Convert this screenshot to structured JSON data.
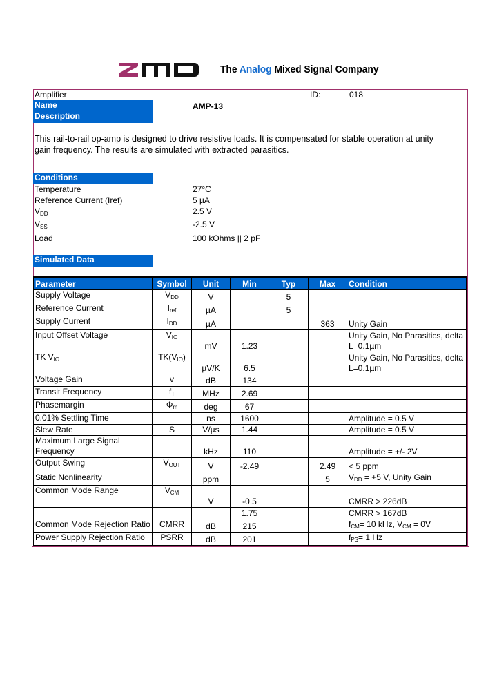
{
  "header": {
    "logo_text": "ZMD",
    "tagline_pre": "The ",
    "tagline_accent": "Analog",
    "tagline_post": " Mixed Signal Company",
    "brand_color": "#a0306a",
    "accent_color": "#0066cc"
  },
  "info": {
    "category": "Amplifier",
    "id_label": "ID:",
    "id_value": "018",
    "name_label": "Name",
    "name_value": "AMP-13",
    "description_label": "Description",
    "description": "This rail-to-rail op-amp is designed to drive resistive loads. It is compensated for stable operation at unity gain frequency. The results are simulated with extracted parasitics."
  },
  "conditions": {
    "title": "Conditions",
    "items": [
      {
        "label": "Temperature",
        "sub": "",
        "value": "27°C"
      },
      {
        "label": "Reference Current (Iref)",
        "sub": "",
        "value": "5 µA"
      },
      {
        "label": "V",
        "sub": "DD",
        "value": "2.5 V"
      },
      {
        "label": "V",
        "sub": "SS",
        "value": "-2.5 V"
      },
      {
        "label": "Load",
        "sub": "",
        "value": "100 kOhms || 2 pF"
      }
    ]
  },
  "simulated_title": "Simulated Data",
  "table": {
    "headers": [
      "Parameter",
      "Symbol",
      "Unit",
      "Min",
      "Typ",
      "Max",
      "Condition"
    ],
    "rows": [
      {
        "param": "Supply Voltage",
        "sym": [
          "V",
          "DD"
        ],
        "unit": "V",
        "min": "",
        "typ": "5",
        "max": "",
        "cond": [
          [
            "",
            ""
          ]
        ]
      },
      {
        "param": "Reference Current",
        "sym": [
          "I",
          "ref"
        ],
        "unit": "µA",
        "min": "",
        "typ": "5",
        "max": "",
        "cond": [
          [
            "",
            ""
          ]
        ]
      },
      {
        "param": "Supply Current",
        "sym": [
          "I",
          "DD"
        ],
        "unit": "µA",
        "min": "",
        "typ": "",
        "max": "363",
        "cond": [
          [
            "Unity Gain",
            ""
          ]
        ]
      },
      {
        "param": "Input Offset Voltage",
        "sym": [
          "V",
          "IO"
        ],
        "unit": "mV",
        "min": "1.23",
        "typ": "",
        "max": "",
        "cond": [
          [
            "Unity Gain, No Parasitics, delta L=0.1µm",
            ""
          ]
        ],
        "tall": true
      },
      {
        "param": "TK V|IO",
        "sym": [
          "TK(V",
          "IO",
          ")"
        ],
        "unit": "µV/K",
        "min": "6.5",
        "typ": "",
        "max": "",
        "cond": [
          [
            "Unity Gain, No Parasitics, delta L=0.1µm",
            ""
          ]
        ],
        "tall": true
      },
      {
        "param": "Voltage Gain",
        "sym": [
          "v",
          ""
        ],
        "unit": "dB",
        "min": "134",
        "typ": "",
        "max": "",
        "cond": [
          [
            "",
            ""
          ]
        ]
      },
      {
        "param": "Transit Frequency",
        "sym": [
          "f",
          "T"
        ],
        "unit": "MHz",
        "min": "2.69",
        "typ": "",
        "max": "",
        "cond": [
          [
            "",
            ""
          ]
        ]
      },
      {
        "param": "Phasemargin",
        "sym": [
          "Φ",
          "m"
        ],
        "unit": "deg",
        "min": "67",
        "typ": "",
        "max": "",
        "cond": [
          [
            "",
            ""
          ]
        ]
      },
      {
        "param": "0.01% Settling Time",
        "sym": [
          "",
          ""
        ],
        "unit": "ns",
        "min": "1600",
        "typ": "",
        "max": "",
        "cond": [
          [
            "Amplitude = 0.5 V",
            ""
          ]
        ]
      },
      {
        "param": "Slew Rate",
        "sym": [
          "S",
          ""
        ],
        "unit": "V/µs",
        "min": "1.44",
        "typ": "",
        "max": "",
        "cond": [
          [
            "Amplitude = 0.5 V",
            ""
          ]
        ]
      },
      {
        "param": "Maximum Large Signal Frequency",
        "sym": [
          "",
          ""
        ],
        "unit": "kHz",
        "min": "110",
        "typ": "",
        "max": "",
        "cond": [
          [
            "Amplitude = +/- 2V",
            ""
          ]
        ]
      },
      {
        "param": "Output Swing",
        "sym": [
          "V",
          "OUT"
        ],
        "unit": "V",
        "min": "-2.49",
        "typ": "",
        "max": "2.49",
        "cond": [
          [
            "< 5 ppm",
            ""
          ]
        ]
      },
      {
        "param": "Static Nonlinearity",
        "sym": [
          "",
          ""
        ],
        "unit": "ppm",
        "min": "",
        "typ": "",
        "max": "5",
        "cond": [
          [
            "V",
            "DD"
          ],
          [
            " = +5 V, Unity Gain",
            ""
          ]
        ]
      },
      {
        "param": "Common Mode Range",
        "sym": [
          "V",
          "CM"
        ],
        "unit": "V",
        "min": "-0.5",
        "typ": "",
        "max": "",
        "cond": [
          [
            "CMRR > 226dB",
            ""
          ]
        ],
        "tall": true
      },
      {
        "param": "",
        "sym": [
          "",
          ""
        ],
        "unit": "",
        "min": "1.75",
        "typ": "",
        "max": "",
        "cond": [
          [
            "CMRR > 167dB",
            ""
          ]
        ]
      },
      {
        "param": "Common Mode Rejection Ratio",
        "sym": [
          "CMRR",
          ""
        ],
        "unit": "dB",
        "min": "215",
        "typ": "",
        "max": "",
        "cond": [
          [
            "f",
            "CM"
          ],
          [
            "= 10 kHz, V",
            "CM"
          ],
          [
            " = 0V",
            ""
          ]
        ]
      },
      {
        "param": "Power Supply Rejection Ratio",
        "sym": [
          "PSRR",
          ""
        ],
        "unit": "dB",
        "min": "201",
        "typ": "",
        "max": "",
        "cond": [
          [
            "f",
            "PS"
          ],
          [
            "= 1 Hz",
            ""
          ]
        ]
      }
    ]
  }
}
